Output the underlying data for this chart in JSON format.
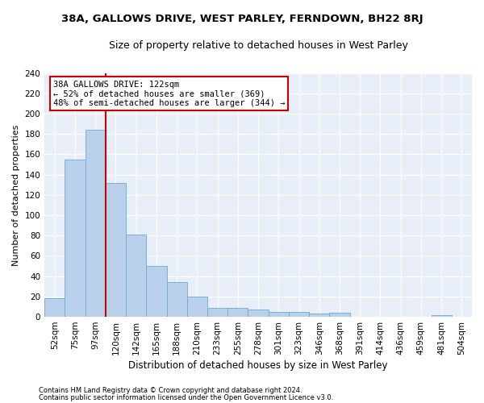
{
  "title1": "38A, GALLOWS DRIVE, WEST PARLEY, FERNDOWN, BH22 8RJ",
  "title2": "Size of property relative to detached houses in West Parley",
  "xlabel": "Distribution of detached houses by size in West Parley",
  "ylabel": "Number of detached properties",
  "bar_color": "#b8d0ea",
  "bar_edge_color": "#6aaad4",
  "annotation_box_color": "#cc0000",
  "annotation_text": "38A GALLOWS DRIVE: 122sqm\n← 52% of detached houses are smaller (369)\n48% of semi-detached houses are larger (344) →",
  "property_sqm": 122,
  "footer1": "Contains HM Land Registry data © Crown copyright and database right 2024.",
  "footer2": "Contains public sector information licensed under the Open Government Licence v3.0.",
  "categories": [
    "52sqm",
    "75sqm",
    "97sqm",
    "120sqm",
    "142sqm",
    "165sqm",
    "188sqm",
    "210sqm",
    "233sqm",
    "255sqm",
    "278sqm",
    "301sqm",
    "323sqm",
    "346sqm",
    "368sqm",
    "391sqm",
    "414sqm",
    "436sqm",
    "459sqm",
    "481sqm",
    "504sqm"
  ],
  "values": [
    18,
    155,
    184,
    132,
    81,
    50,
    34,
    20,
    9,
    9,
    7,
    5,
    5,
    3,
    4,
    0,
    0,
    0,
    0,
    2,
    0
  ],
  "ylim": [
    0,
    240
  ],
  "yticks": [
    0,
    20,
    40,
    60,
    80,
    100,
    120,
    140,
    160,
    180,
    200,
    220,
    240
  ],
  "background_color": "#e8eef8",
  "grid_color": "#ffffff",
  "title1_fontsize": 9.5,
  "title2_fontsize": 9,
  "xlabel_fontsize": 8.5,
  "ylabel_fontsize": 8,
  "tick_fontsize": 7.5,
  "footer_fontsize": 6.0
}
